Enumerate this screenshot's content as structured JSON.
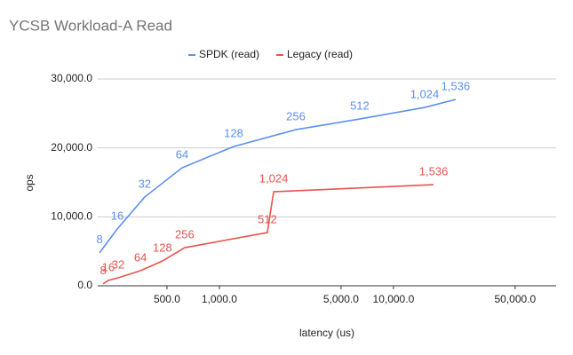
{
  "chart_data": {
    "type": "line",
    "title": "YCSB Workload-A Read",
    "xlabel": "latency (us)",
    "ylabel": "ops",
    "xscale": "log",
    "grid": true,
    "legend": "top",
    "xlim": [
      200,
      86000
    ],
    "ylim": [
      0,
      30000
    ],
    "xticks": [
      {
        "value": 500,
        "label": "500.0"
      },
      {
        "value": 1000,
        "label": "1,000.0"
      },
      {
        "value": 5000,
        "label": "5,000.0"
      },
      {
        "value": 10000,
        "label": "10,000.0"
      },
      {
        "value": 50000,
        "label": "50,000.0"
      }
    ],
    "yticks": [
      {
        "value": 0,
        "label": "0.0"
      },
      {
        "value": 10000,
        "label": "10,000.0"
      },
      {
        "value": 20000,
        "label": "20,000.0"
      },
      {
        "value": 30000,
        "label": "30,000.0"
      }
    ],
    "series": [
      {
        "name": "SPDK (read)",
        "color": "#5b8ff0",
        "x": [
          205,
          259,
          372,
          611,
          1208,
          2750,
          6400,
          15100,
          22750
        ],
        "values": [
          4800,
          8240,
          12870,
          17120,
          20200,
          22650,
          24200,
          25870,
          27030
        ],
        "point_labels": [
          "8",
          "16",
          "32",
          "64",
          "128",
          "256",
          "512",
          "1,024",
          "1,536"
        ]
      },
      {
        "name": "Legacy (read)",
        "color": "#e8534f",
        "x": [
          215,
          230,
          262,
          352,
          471,
          632,
          1885,
          2050,
          17000
        ],
        "values": [
          300,
          770,
          1160,
          2190,
          3600,
          5530,
          7720,
          13640,
          14670
        ],
        "point_labels": [
          "8",
          "16",
          "32",
          "64",
          "128",
          "256",
          "512",
          "1,024",
          "1,536"
        ]
      }
    ]
  }
}
